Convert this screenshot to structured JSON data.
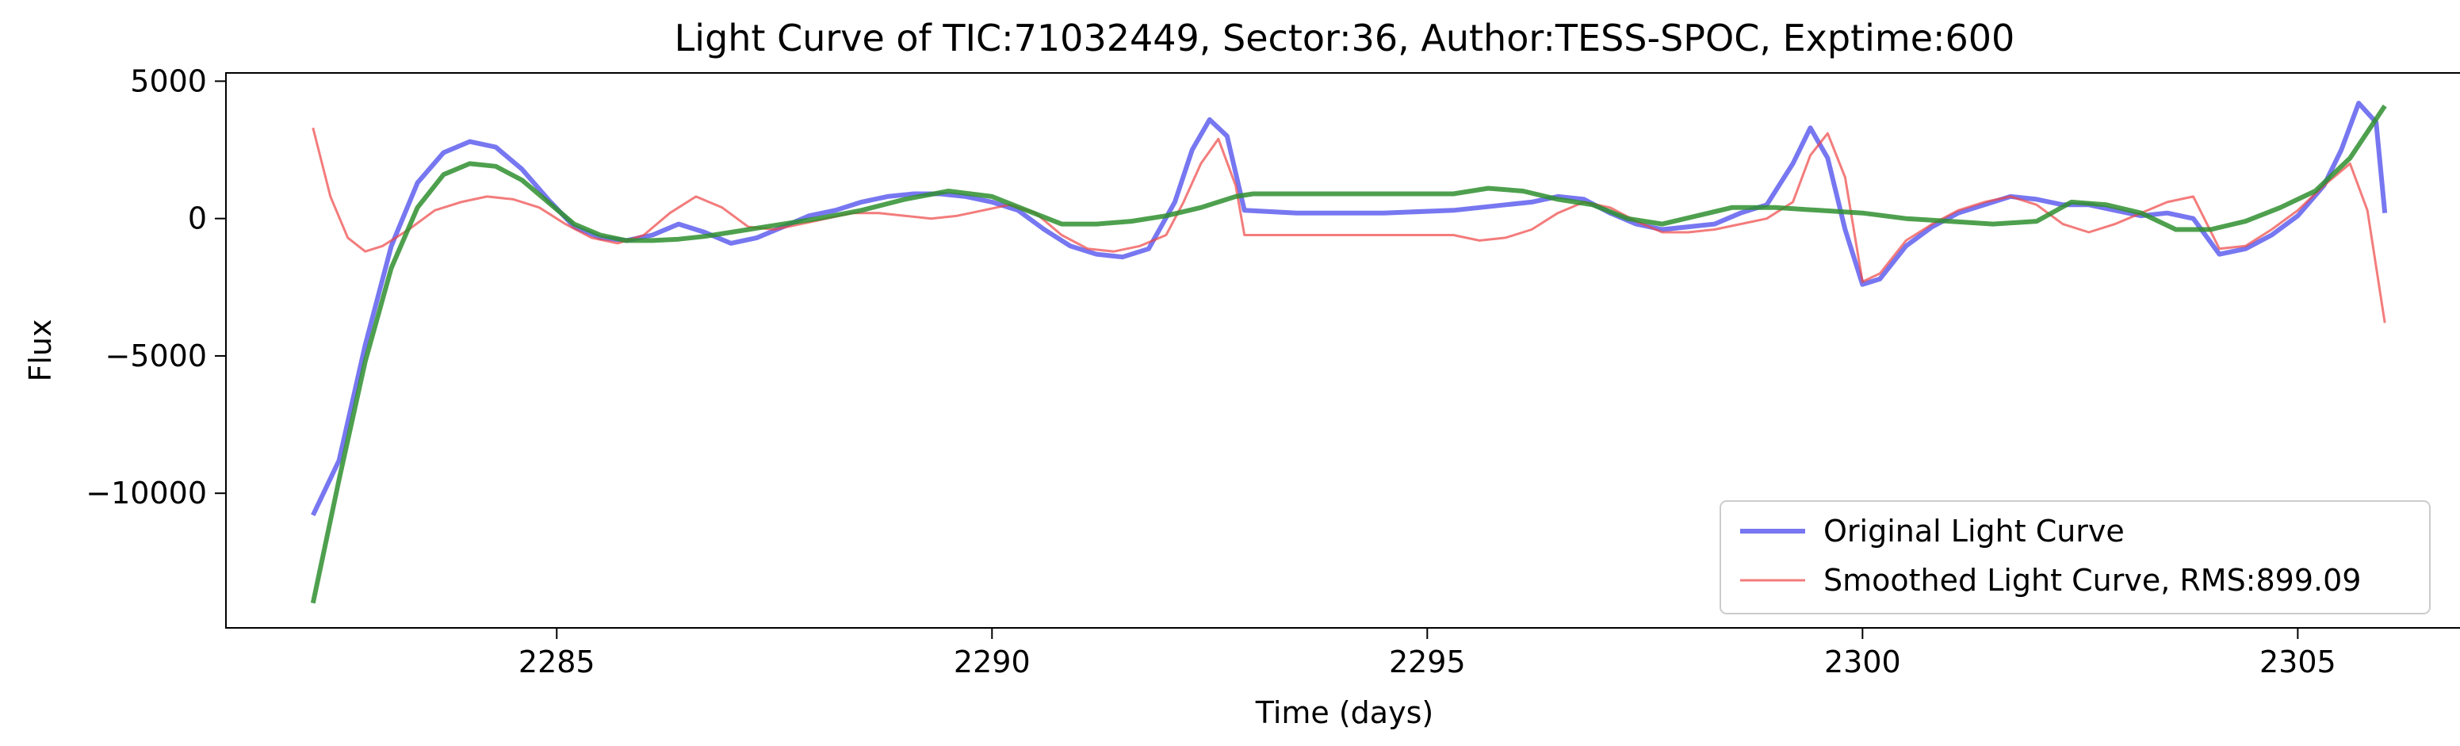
{
  "chart_data": {
    "type": "line",
    "title": "Light Curve of TIC:71032449, Sector:36, Author:TESS-SPOC, Exptime:600",
    "xlabel": "Time (days)",
    "ylabel": "Flux",
    "xlim": [
      2281.2,
      2306.9
    ],
    "ylim": [
      -14900,
      5300
    ],
    "xticks": [
      2285,
      2290,
      2295,
      2300,
      2305
    ],
    "xtick_labels": [
      "2285",
      "2290",
      "2295",
      "2300",
      "2305"
    ],
    "yticks": [
      5000,
      0,
      -5000,
      -10000
    ],
    "ytick_labels": [
      "5000",
      "0",
      "−5000",
      "−10000"
    ],
    "grid": false,
    "legend_position": "lower right",
    "series": [
      {
        "name": "Original Light Curve",
        "color": "#5555ee",
        "x": [
          2282.2,
          2282.5,
          2282.8,
          2283.1,
          2283.4,
          2283.7,
          2284.0,
          2284.3,
          2284.6,
          2284.9,
          2285.2,
          2285.5,
          2285.8,
          2286.1,
          2286.4,
          2286.7,
          2287.0,
          2287.3,
          2287.6,
          2287.9,
          2288.2,
          2288.5,
          2288.8,
          2289.1,
          2289.4,
          2289.7,
          2290.0,
          2290.3,
          2290.6,
          2290.9,
          2291.2,
          2291.5,
          2291.8,
          2292.1,
          2292.3,
          2292.5,
          2292.7,
          2292.9,
          2293.5,
          2294.5,
          2295.3,
          2295.6,
          2295.9,
          2296.2,
          2296.5,
          2296.8,
          2297.1,
          2297.4,
          2297.7,
          2298.0,
          2298.3,
          2298.6,
          2298.9,
          2299.2,
          2299.4,
          2299.6,
          2299.8,
          2300.0,
          2300.2,
          2300.5,
          2300.8,
          2301.1,
          2301.4,
          2301.7,
          2302.0,
          2302.3,
          2302.6,
          2302.9,
          2303.2,
          2303.5,
          2303.8,
          2304.1,
          2304.4,
          2304.7,
          2305.0,
          2305.3,
          2305.5,
          2305.7,
          2305.9,
          2306.0
        ],
        "y": [
          -10800,
          -8800,
          -4600,
          -1000,
          1300,
          2400,
          2800,
          2600,
          1800,
          700,
          -300,
          -700,
          -800,
          -600,
          -200,
          -500,
          -900,
          -700,
          -300,
          100,
          300,
          600,
          800,
          900,
          900,
          800,
          600,
          300,
          -400,
          -1000,
          -1300,
          -1400,
          -1100,
          600,
          2500,
          3600,
          3000,
          300,
          200,
          200,
          300,
          400,
          500,
          600,
          800,
          700,
          200,
          -200,
          -400,
          -300,
          -200,
          200,
          500,
          2000,
          3300,
          2200,
          -400,
          -2400,
          -2200,
          -1000,
          -300,
          200,
          500,
          800,
          700,
          500,
          500,
          300,
          100,
          200,
          0,
          -1300,
          -1100,
          -600,
          100,
          1200,
          2500,
          4200,
          3500,
          200
        ]
      },
      {
        "name": "Smoothed Light Curve, RMS:899.09",
        "color": "#ee4444",
        "x": [
          2282.2,
          2282.4,
          2282.6,
          2282.8,
          2283.0,
          2283.3,
          2283.6,
          2283.9,
          2284.2,
          2284.5,
          2284.8,
          2285.1,
          2285.4,
          2285.7,
          2286.0,
          2286.3,
          2286.6,
          2286.9,
          2287.2,
          2287.5,
          2287.8,
          2288.1,
          2288.4,
          2288.7,
          2289.0,
          2289.3,
          2289.6,
          2289.9,
          2290.2,
          2290.5,
          2290.8,
          2291.1,
          2291.4,
          2291.7,
          2292.0,
          2292.2,
          2292.4,
          2292.6,
          2292.8,
          2292.9,
          2294.0,
          2295.3,
          2295.6,
          2295.9,
          2296.2,
          2296.5,
          2296.8,
          2297.1,
          2297.4,
          2297.7,
          2298.0,
          2298.3,
          2298.6,
          2298.9,
          2299.2,
          2299.4,
          2299.6,
          2299.8,
          2300.0,
          2300.2,
          2300.5,
          2300.8,
          2301.1,
          2301.4,
          2301.7,
          2302.0,
          2302.3,
          2302.6,
          2302.9,
          2303.2,
          2303.5,
          2303.8,
          2304.1,
          2304.4,
          2304.7,
          2305.0,
          2305.3,
          2305.6,
          2305.8,
          2306.0
        ],
        "y": [
          3300,
          800,
          -700,
          -1200,
          -1000,
          -400,
          300,
          600,
          800,
          700,
          400,
          -200,
          -700,
          -900,
          -600,
          200,
          800,
          400,
          -300,
          -400,
          -200,
          0,
          200,
          200,
          100,
          0,
          100,
          300,
          500,
          200,
          -600,
          -1100,
          -1200,
          -1000,
          -600,
          600,
          2000,
          2900,
          1200,
          -600,
          -600,
          -600,
          -800,
          -700,
          -400,
          200,
          600,
          400,
          -100,
          -500,
          -500,
          -400,
          -200,
          0,
          600,
          2300,
          3100,
          1500,
          -2300,
          -2000,
          -800,
          -200,
          300,
          600,
          800,
          500,
          -200,
          -500,
          -200,
          200,
          600,
          800,
          -1100,
          -1000,
          -400,
          300,
          1200,
          2000,
          300,
          -3800
        ]
      },
      {
        "name": "",
        "color": "#2f8f2f",
        "x": [
          2282.2,
          2282.5,
          2282.8,
          2283.1,
          2283.4,
          2283.7,
          2284.0,
          2284.3,
          2284.6,
          2284.9,
          2285.2,
          2285.5,
          2285.8,
          2286.1,
          2286.4,
          2286.7,
          2287.0,
          2287.5,
          2288.0,
          2288.5,
          2289.0,
          2289.5,
          2290.0,
          2290.4,
          2290.8,
          2291.2,
          2291.6,
          2292.0,
          2292.4,
          2292.8,
          2293.0,
          2294.0,
          2295.3,
          2295.7,
          2296.1,
          2296.5,
          2296.9,
          2297.3,
          2297.7,
          2298.1,
          2298.5,
          2299.0,
          2299.5,
          2300.0,
          2300.5,
          2301.0,
          2301.5,
          2302.0,
          2302.4,
          2302.8,
          2303.2,
          2303.6,
          2304.0,
          2304.4,
          2304.8,
          2305.2,
          2305.6,
          2306.0
        ],
        "y": [
          -14000,
          -9500,
          -5200,
          -1800,
          400,
          1600,
          2000,
          1900,
          1400,
          600,
          -200,
          -600,
          -800,
          -800,
          -750,
          -650,
          -500,
          -250,
          0,
          300,
          700,
          1000,
          800,
          300,
          -200,
          -200,
          -100,
          100,
          400,
          800,
          900,
          900,
          900,
          1100,
          1000,
          700,
          500,
          0,
          -200,
          100,
          400,
          400,
          300,
          200,
          0,
          -100,
          -200,
          -100,
          600,
          500,
          200,
          -400,
          -400,
          -100,
          400,
          1000,
          2200,
          4100
        ]
      }
    ]
  }
}
